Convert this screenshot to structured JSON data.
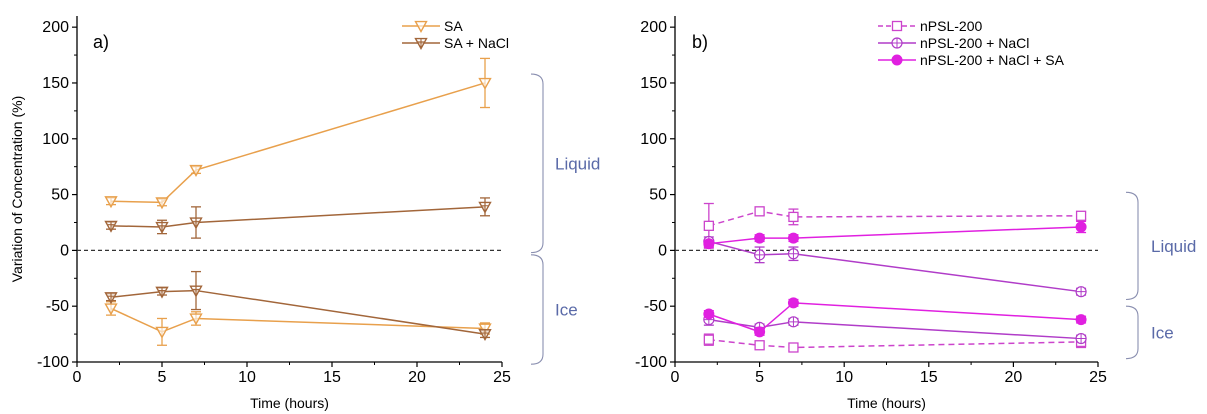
{
  "chart_data": [
    {
      "type": "line",
      "panel_label": "a)",
      "xlabel": "Time (hours)",
      "ylabel": "Variation of Concentration (%)",
      "xlim": [
        0,
        25
      ],
      "ylim": [
        -100,
        210
      ],
      "xticks": [
        0,
        5,
        10,
        15,
        20,
        25
      ],
      "yticks": [
        -100,
        -50,
        0,
        50,
        100,
        150,
        200
      ],
      "zero_line": {
        "y": 0,
        "style": "dashed",
        "color": "#333333"
      },
      "legend_position": "top-right",
      "regions": [
        {
          "label": "Liquid",
          "range": [
            -2,
            158
          ],
          "color": "#5a6aa8"
        },
        {
          "label": "Ice",
          "range": [
            -102,
            -4
          ],
          "color": "#5a6aa8"
        }
      ],
      "series": [
        {
          "name": "SA",
          "phase": "Liquid",
          "color": "#e8a04c",
          "marker": "triangle-down-open",
          "dash": "solid",
          "show_in_legend": true,
          "x": [
            2,
            5,
            7,
            24
          ],
          "y": [
            44,
            43,
            72,
            150
          ],
          "err": [
            3,
            3,
            3,
            22
          ]
        },
        {
          "name": "SA + NaCl",
          "phase": "Liquid",
          "color": "#a2663a",
          "marker": "triangle-down-cross",
          "dash": "solid",
          "show_in_legend": true,
          "x": [
            2,
            5,
            7,
            24
          ],
          "y": [
            22,
            21,
            25,
            39
          ],
          "err": [
            3,
            6,
            14,
            8
          ]
        },
        {
          "name": "SA",
          "phase": "Ice",
          "color": "#e8a04c",
          "marker": "triangle-down-open",
          "dash": "solid",
          "show_in_legend": false,
          "x": [
            2,
            5,
            7,
            24
          ],
          "y": [
            -52,
            -73,
            -61,
            -70
          ],
          "err": [
            6,
            12,
            6,
            5
          ]
        },
        {
          "name": "SA + NaCl",
          "phase": "Ice",
          "color": "#a2663a",
          "marker": "triangle-down-cross",
          "dash": "solid",
          "show_in_legend": false,
          "x": [
            2,
            5,
            7,
            24
          ],
          "y": [
            -42,
            -37,
            -36,
            -75
          ],
          "err": [
            3,
            3,
            17,
            3
          ]
        }
      ]
    },
    {
      "type": "line",
      "panel_label": "b)",
      "xlabel": "Time (hours)",
      "ylabel": "",
      "xlim": [
        0,
        25
      ],
      "ylim": [
        -100,
        210
      ],
      "xticks": [
        0,
        5,
        10,
        15,
        20,
        25
      ],
      "yticks": [
        -100,
        -50,
        0,
        50,
        100,
        150,
        200
      ],
      "zero_line": {
        "y": 0,
        "style": "dashed",
        "color": "#333333"
      },
      "legend_position": "top-center",
      "regions": [
        {
          "label": "Liquid",
          "range": [
            -44,
            52
          ],
          "color": "#5a6aa8"
        },
        {
          "label": "Ice",
          "range": [
            -97,
            -50
          ],
          "color": "#5a6aa8"
        }
      ],
      "series": [
        {
          "name": "nPSL-200",
          "phase": "Liquid",
          "color": "#cc44cc",
          "marker": "square-open",
          "dash": "dashed",
          "show_in_legend": true,
          "x": [
            2,
            5,
            7,
            24
          ],
          "y": [
            22,
            35,
            30,
            31
          ],
          "err": [
            20,
            3,
            7,
            3
          ]
        },
        {
          "name": "nPSL-200 + NaCl",
          "phase": "Liquid",
          "color": "#b03cc8",
          "marker": "circle-cross",
          "dash": "solid",
          "show_in_legend": true,
          "x": [
            2,
            5,
            7,
            24
          ],
          "y": [
            8,
            -4,
            -3,
            -37
          ],
          "err": [
            4,
            7,
            6,
            3
          ]
        },
        {
          "name": "nPSL-200 + NaCl + SA",
          "phase": "Liquid",
          "color": "#e020e0",
          "marker": "circle-filled",
          "dash": "solid",
          "show_in_legend": true,
          "x": [
            2,
            5,
            7,
            24
          ],
          "y": [
            6,
            11,
            11,
            21
          ],
          "err": [
            3,
            3,
            3,
            5
          ]
        },
        {
          "name": "nPSL-200",
          "phase": "Ice",
          "color": "#cc44cc",
          "marker": "square-open",
          "dash": "dashed",
          "show_in_legend": false,
          "x": [
            2,
            5,
            7,
            24
          ],
          "y": [
            -80,
            -85,
            -87,
            -82
          ],
          "err": [
            5,
            3,
            3,
            5
          ]
        },
        {
          "name": "nPSL-200 + NaCl",
          "phase": "Ice",
          "color": "#b03cc8",
          "marker": "circle-cross",
          "dash": "solid",
          "show_in_legend": false,
          "x": [
            2,
            5,
            7,
            24
          ],
          "y": [
            -62,
            -69,
            -64,
            -79
          ],
          "err": [
            5,
            3,
            3,
            3
          ]
        },
        {
          "name": "nPSL-200 + NaCl + SA",
          "phase": "Ice",
          "color": "#e020e0",
          "marker": "circle-filled",
          "dash": "solid",
          "show_in_legend": false,
          "x": [
            2,
            5,
            7,
            24
          ],
          "y": [
            -57,
            -73,
            -47,
            -62
          ],
          "err": [
            3,
            3,
            3,
            3
          ]
        }
      ]
    }
  ]
}
